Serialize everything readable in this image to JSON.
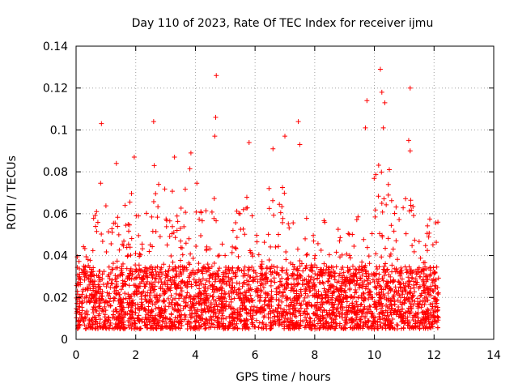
{
  "chart_data": {
    "type": "scatter",
    "title": "Day 110 of 2023, Rate Of TEC Index for receiver ijmu",
    "xlabel": "GPS time / hours",
    "ylabel": "ROTI / TECUs",
    "xlim": [
      0,
      14
    ],
    "ylim": [
      0,
      0.14
    ],
    "x_ticks": [
      0,
      2,
      4,
      6,
      8,
      10,
      12,
      14
    ],
    "x_tick_labels": [
      "0",
      "2",
      "4",
      "6",
      "8",
      "10",
      "12",
      "14"
    ],
    "y_ticks": [
      0,
      0.02,
      0.04,
      0.06,
      0.08,
      0.1,
      0.12,
      0.14
    ],
    "y_tick_labels": [
      "0",
      "0.02",
      "0.04",
      "0.06",
      "0.08",
      "0.1",
      "0.12",
      "0.14"
    ],
    "grid": true,
    "marker": "+",
    "series": [
      {
        "name": "ROTI",
        "color": "#ff0000",
        "x_range": [
          0,
          12.15
        ],
        "typical_range": [
          0.005,
          0.035
        ],
        "spikes": [
          {
            "x": 0.85,
            "y": 0.103
          },
          {
            "x": 1.35,
            "y": 0.084
          },
          {
            "x": 1.95,
            "y": 0.087
          },
          {
            "x": 2.6,
            "y": 0.104
          },
          {
            "x": 2.62,
            "y": 0.083
          },
          {
            "x": 3.3,
            "y": 0.087
          },
          {
            "x": 3.85,
            "y": 0.089
          },
          {
            "x": 4.7,
            "y": 0.126
          },
          {
            "x": 4.68,
            "y": 0.106
          },
          {
            "x": 4.65,
            "y": 0.097
          },
          {
            "x": 5.8,
            "y": 0.094
          },
          {
            "x": 6.6,
            "y": 0.091
          },
          {
            "x": 7.0,
            "y": 0.097
          },
          {
            "x": 7.45,
            "y": 0.104
          },
          {
            "x": 7.5,
            "y": 0.093
          },
          {
            "x": 9.75,
            "y": 0.114
          },
          {
            "x": 9.7,
            "y": 0.101
          },
          {
            "x": 10.2,
            "y": 0.129
          },
          {
            "x": 10.25,
            "y": 0.118
          },
          {
            "x": 10.3,
            "y": 0.101
          },
          {
            "x": 10.35,
            "y": 0.113
          },
          {
            "x": 10.5,
            "y": 0.081
          },
          {
            "x": 11.2,
            "y": 0.12
          },
          {
            "x": 11.15,
            "y": 0.095
          },
          {
            "x": 11.2,
            "y": 0.09
          }
        ],
        "peak_envelope": [
          {
            "x": 0.1,
            "y": 0.042
          },
          {
            "x": 0.5,
            "y": 0.052
          },
          {
            "x": 0.85,
            "y": 0.077
          },
          {
            "x": 1.3,
            "y": 0.056
          },
          {
            "x": 1.95,
            "y": 0.08
          },
          {
            "x": 2.55,
            "y": 0.083
          },
          {
            "x": 3.1,
            "y": 0.07
          },
          {
            "x": 3.8,
            "y": 0.088
          },
          {
            "x": 4.4,
            "y": 0.065
          },
          {
            "x": 4.7,
            "y": 0.078
          },
          {
            "x": 5.3,
            "y": 0.058
          },
          {
            "x": 5.8,
            "y": 0.078
          },
          {
            "x": 6.2,
            "y": 0.052
          },
          {
            "x": 6.6,
            "y": 0.082
          },
          {
            "x": 7.1,
            "y": 0.075
          },
          {
            "x": 7.5,
            "y": 0.07
          },
          {
            "x": 8.0,
            "y": 0.05
          },
          {
            "x": 8.5,
            "y": 0.062
          },
          {
            "x": 9.0,
            "y": 0.048
          },
          {
            "x": 9.6,
            "y": 0.07
          },
          {
            "x": 10.2,
            "y": 0.09
          },
          {
            "x": 10.6,
            "y": 0.07
          },
          {
            "x": 11.2,
            "y": 0.068
          },
          {
            "x": 11.6,
            "y": 0.05
          },
          {
            "x": 12.0,
            "y": 0.062
          }
        ]
      }
    ]
  }
}
